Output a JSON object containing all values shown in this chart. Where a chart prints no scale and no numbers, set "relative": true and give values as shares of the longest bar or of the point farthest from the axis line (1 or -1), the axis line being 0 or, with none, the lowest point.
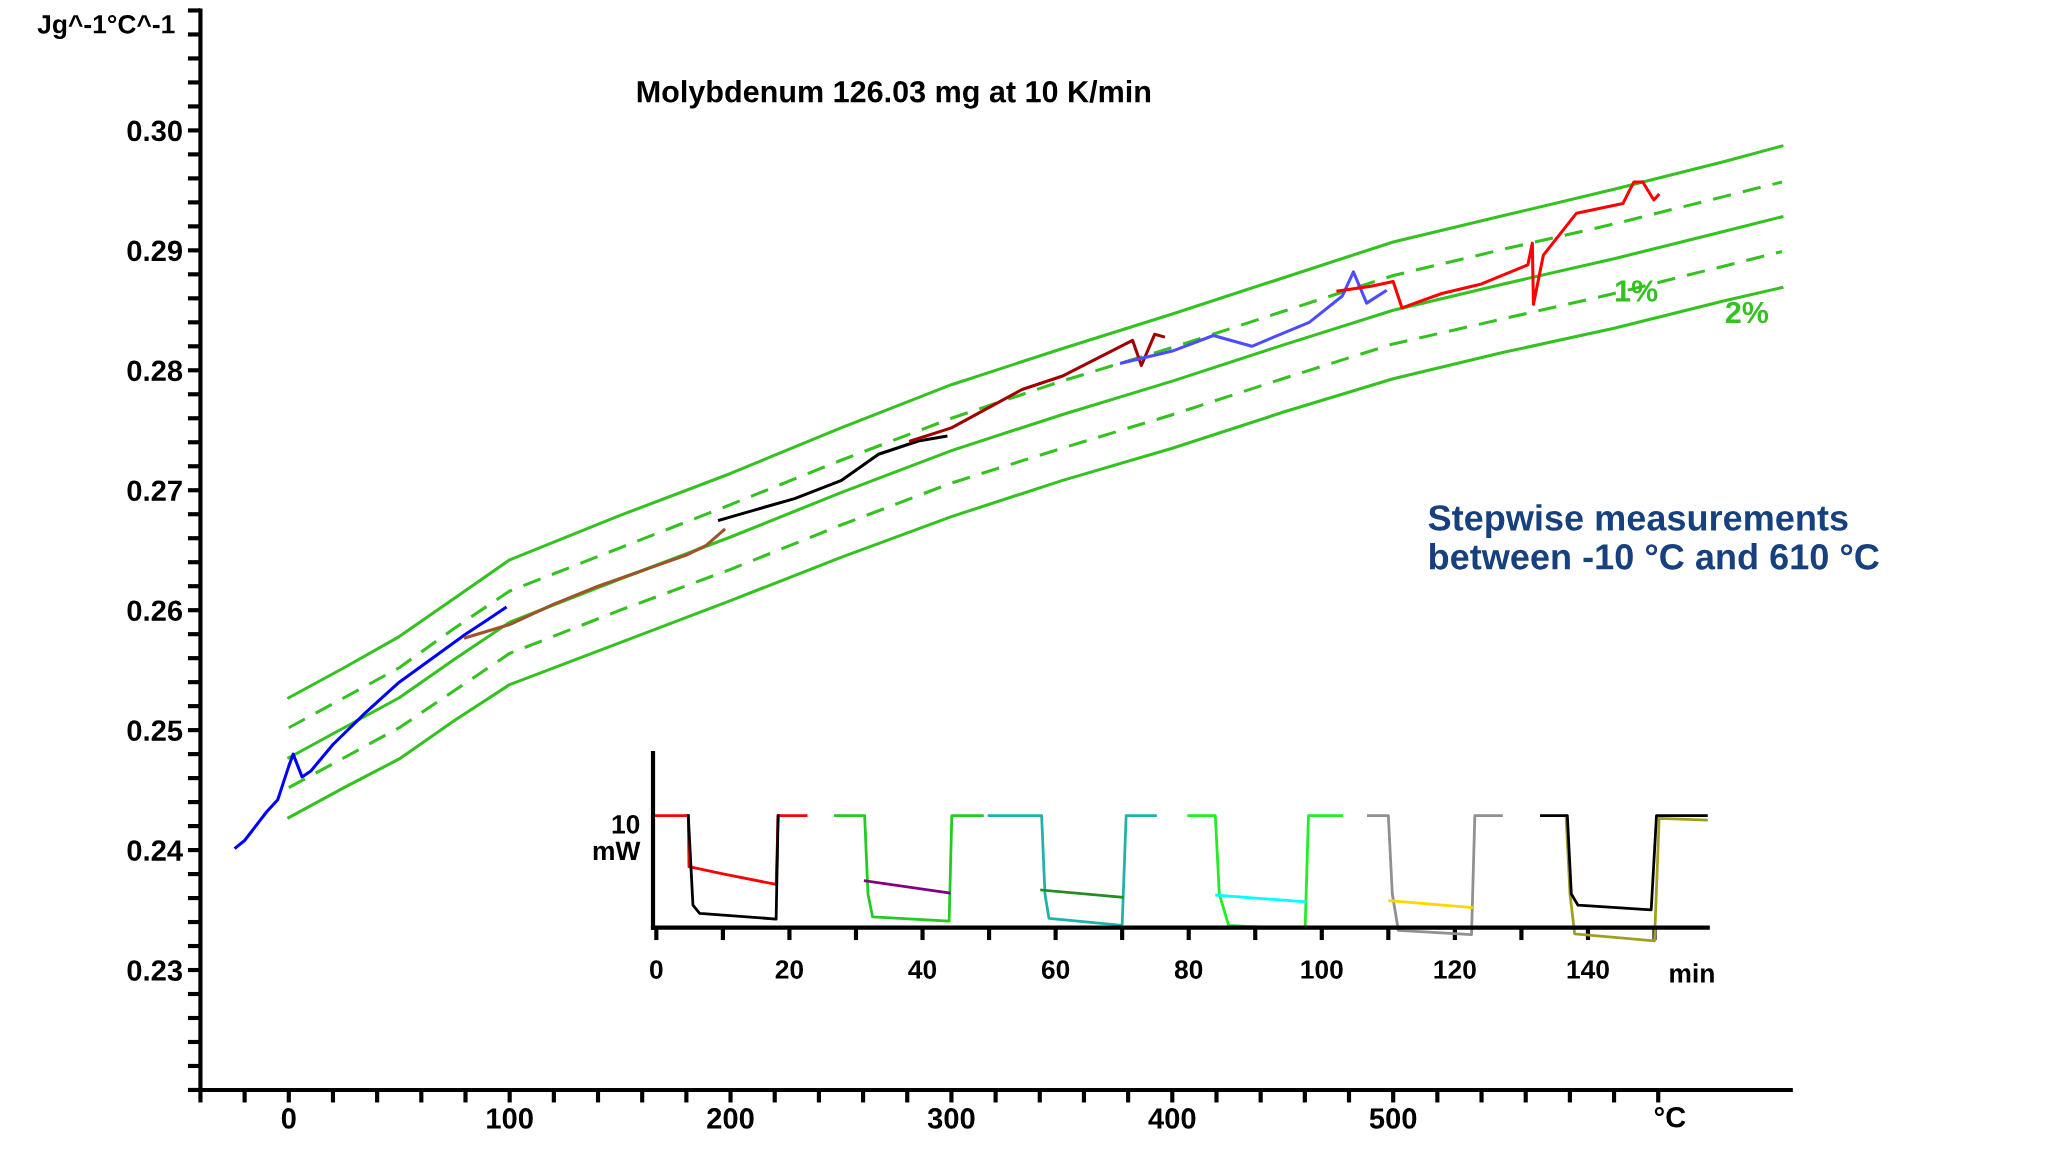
{
  "chart_data": [
    {
      "type": "line",
      "title": "Molybdenum 126.03 mg at 10 K/min",
      "xlabel": "°C",
      "ylabel": "Jg^-1°C^-1",
      "xlim": [
        -40,
        680
      ],
      "ylim": [
        0.22,
        0.31
      ],
      "xticks": [
        {
          "value": -40,
          "label": null
        },
        {
          "value": -20,
          "label": null
        },
        0,
        {
          "value": 20,
          "label": null
        },
        {
          "value": 40,
          "label": null
        },
        {
          "value": 60,
          "label": null
        },
        {
          "value": 80,
          "label": null
        },
        100,
        {
          "value": 120,
          "label": null
        },
        {
          "value": 140,
          "label": null
        },
        {
          "value": 160,
          "label": null
        },
        {
          "value": 180,
          "label": null
        },
        200,
        {
          "value": 220,
          "label": null
        },
        {
          "value": 240,
          "label": null
        },
        {
          "value": 260,
          "label": null
        },
        {
          "value": 280,
          "label": null
        },
        300,
        {
          "value": 320,
          "label": null
        },
        {
          "value": 340,
          "label": null
        },
        {
          "value": 360,
          "label": null
        },
        {
          "value": 380,
          "label": null
        },
        400,
        {
          "value": 420,
          "label": null
        },
        {
          "value": 440,
          "label": null
        },
        {
          "value": 460,
          "label": null
        },
        {
          "value": 480,
          "label": null
        },
        500,
        {
          "value": 520,
          "label": null
        },
        {
          "value": 540,
          "label": null
        },
        {
          "value": 560,
          "label": null
        },
        {
          "value": 580,
          "label": null
        },
        {
          "value": 600,
          "label": null
        },
        {
          "value": 620,
          "label": null
        }
      ],
      "yticks": [
        {
          "value": 0.22,
          "label": null
        },
        {
          "value": 0.222,
          "label": null
        },
        {
          "value": 0.224,
          "label": null
        },
        {
          "value": 0.226,
          "label": null
        },
        {
          "value": 0.228,
          "label": null
        },
        {
          "value": 0.23,
          "label": "0.23"
        },
        {
          "value": 0.232,
          "label": null
        },
        {
          "value": 0.234,
          "label": null
        },
        {
          "value": 0.236,
          "label": null
        },
        {
          "value": 0.238,
          "label": null
        },
        {
          "value": 0.24,
          "label": "0.24"
        },
        {
          "value": 0.242,
          "label": null
        },
        {
          "value": 0.244,
          "label": null
        },
        {
          "value": 0.246,
          "label": null
        },
        {
          "value": 0.248,
          "label": null
        },
        {
          "value": 0.25,
          "label": "0.25"
        },
        {
          "value": 0.252,
          "label": null
        },
        {
          "value": 0.254,
          "label": null
        },
        {
          "value": 0.256,
          "label": null
        },
        {
          "value": 0.258,
          "label": null
        },
        {
          "value": 0.26,
          "label": "0.26"
        },
        {
          "value": 0.262,
          "label": null
        },
        {
          "value": 0.264,
          "label": null
        },
        {
          "value": 0.266,
          "label": null
        },
        {
          "value": 0.268,
          "label": null
        },
        {
          "value": 0.27,
          "label": "0.27"
        },
        {
          "value": 0.272,
          "label": null
        },
        {
          "value": 0.274,
          "label": null
        },
        {
          "value": 0.276,
          "label": null
        },
        {
          "value": 0.278,
          "label": null
        },
        {
          "value": 0.28,
          "label": "0.28"
        },
        {
          "value": 0.282,
          "label": null
        },
        {
          "value": 0.284,
          "label": null
        },
        {
          "value": 0.286,
          "label": null
        },
        {
          "value": 0.288,
          "label": null
        },
        {
          "value": 0.29,
          "label": "0.29"
        },
        {
          "value": 0.292,
          "label": null
        },
        {
          "value": 0.294,
          "label": null
        },
        {
          "value": 0.296,
          "label": null
        },
        {
          "value": 0.298,
          "label": null
        },
        {
          "value": 0.3,
          "label": "0.30"
        },
        {
          "value": 0.302,
          "label": null
        },
        {
          "value": 0.304,
          "label": null
        },
        {
          "value": 0.306,
          "label": null
        },
        {
          "value": 0.308,
          "label": null
        },
        {
          "value": 0.31,
          "label": null
        }
      ],
      "grid": false,
      "marker": "none",
      "series": [
        {
          "color": "#33c21f",
          "line_style": "solid",
          "x": [
            0,
            25,
            50,
            75,
            100,
            150,
            200,
            250,
            300,
            350,
            400,
            450,
            500,
            550,
            600,
            650,
            676
          ],
          "values": [
            0.2527,
            0.2552,
            0.2578,
            0.261,
            0.2642,
            0.2679,
            0.2714,
            0.2752,
            0.2788,
            0.2818,
            0.2847,
            0.2877,
            0.2907,
            0.2929,
            0.2951,
            0.2974,
            0.2987
          ]
        },
        {
          "color": "#33c21f",
          "line_style": "dashed",
          "x": [
            0,
            25,
            50,
            75,
            100,
            150,
            200,
            250,
            300,
            350,
            400,
            450,
            500,
            550,
            600,
            650,
            676
          ],
          "values": [
            0.2502,
            0.2527,
            0.2552,
            0.2585,
            0.2616,
            0.2652,
            0.2688,
            0.2725,
            0.276,
            0.2791,
            0.2819,
            0.2849,
            0.2879,
            0.2901,
            0.2922,
            0.2945,
            0.2957
          ]
        },
        {
          "color": "#33c21f",
          "line_style": "solid",
          "x": [
            0,
            25,
            50,
            75,
            100,
            150,
            200,
            250,
            300,
            350,
            400,
            450,
            500,
            550,
            600,
            650,
            676
          ],
          "values": [
            0.2477,
            0.2502,
            0.2527,
            0.2559,
            0.259,
            0.2626,
            0.2661,
            0.2698,
            0.2733,
            0.2763,
            0.2791,
            0.2821,
            0.285,
            0.2872,
            0.2893,
            0.2916,
            0.2928
          ]
        },
        {
          "color": "#33c21f",
          "line_style": "dashed",
          "x": [
            0,
            25,
            50,
            75,
            100,
            150,
            200,
            250,
            300,
            350,
            400,
            450,
            500,
            550,
            600,
            650,
            676
          ],
          "values": [
            0.2452,
            0.2477,
            0.2502,
            0.2533,
            0.2564,
            0.26,
            0.2634,
            0.2671,
            0.2706,
            0.2735,
            0.2763,
            0.2793,
            0.2822,
            0.2843,
            0.2864,
            0.2887,
            0.2899
          ]
        },
        {
          "color": "#33c21f",
          "line_style": "solid",
          "x": [
            0,
            25,
            50,
            75,
            100,
            150,
            200,
            250,
            300,
            350,
            400,
            450,
            500,
            550,
            600,
            650,
            676
          ],
          "values": [
            0.2427,
            0.2452,
            0.2476,
            0.2508,
            0.2538,
            0.2573,
            0.2608,
            0.2644,
            0.2678,
            0.2708,
            0.2735,
            0.2765,
            0.2793,
            0.2815,
            0.2835,
            0.2858,
            0.2869
          ]
        },
        {
          "color": "#0000ff",
          "line_style": "solid",
          "x": [
            -24,
            -20,
            -15,
            -10,
            -5,
            0,
            2,
            6,
            10,
            20,
            35,
            50,
            65,
            80,
            90,
            98
          ],
          "values": [
            0.2402,
            0.2408,
            0.242,
            0.2432,
            0.2442,
            0.247,
            0.248,
            0.2461,
            0.2466,
            0.2488,
            0.2515,
            0.254,
            0.256,
            0.258,
            0.2592,
            0.2602
          ]
        },
        {
          "color": "#a0522d",
          "line_style": "solid",
          "x": [
            80,
            100,
            120,
            140,
            160,
            180,
            189,
            197
          ],
          "values": [
            0.2577,
            0.2588,
            0.2605,
            0.262,
            0.2633,
            0.2646,
            0.2654,
            0.2667
          ]
        },
        {
          "color": "#000000",
          "line_style": "solid",
          "x": [
            195,
            210,
            229,
            250,
            267,
            285,
            297.5
          ],
          "values": [
            0.2675,
            0.2683,
            0.2693,
            0.2708,
            0.273,
            0.2741,
            0.2745
          ]
        },
        {
          "color": "#a00000",
          "line_style": "solid",
          "x": [
            281.5,
            300,
            332,
            350,
            366,
            382,
            386,
            392,
            396
          ],
          "values": [
            0.2741,
            0.2752,
            0.2784,
            0.2795,
            0.281,
            0.2825,
            0.2804,
            0.283,
            0.2828
          ]
        },
        {
          "color": "#4d4dff",
          "line_style": "solid",
          "x": [
            377,
            400,
            418.6,
            436,
            462,
            477,
            482,
            488,
            496.5
          ],
          "values": [
            0.2806,
            0.2816,
            0.2829,
            0.282,
            0.284,
            0.2862,
            0.2882,
            0.2856,
            0.2866
          ]
        },
        {
          "color": "#ff0000",
          "line_style": "solid",
          "x": [
            475,
            490,
            500,
            504,
            522,
            540,
            561,
            563,
            563.5,
            568,
            583,
            604,
            607,
            609,
            613,
            618,
            620
          ],
          "values": [
            0.2866,
            0.287,
            0.2874,
            0.2852,
            0.2864,
            0.2872,
            0.2888,
            0.2906,
            0.2855,
            0.2896,
            0.2931,
            0.2939,
            0.295,
            0.2957,
            0.2957,
            0.2942,
            0.2946
          ]
        }
      ],
      "annotations": [
        {
          "text": "1%",
          "x": 610,
          "y": 0.2864
        },
        "2%",
        "Stepwise measurements\nbetween -10 °C and 610 °C"
      ]
    },
    {
      "type": "line",
      "relative": true,
      "xlabel": "min",
      "ylabel": "10\nmW",
      "xlim": [
        -0.5,
        158
      ],
      "xticks": [
        0,
        {
          "value": 10,
          "label": null
        },
        20,
        {
          "value": 30,
          "label": null
        },
        40,
        {
          "value": 50,
          "label": null
        },
        60,
        {
          "value": 70,
          "label": null
        },
        80,
        {
          "value": 90,
          "label": null
        },
        100,
        {
          "value": 110,
          "label": null
        },
        120,
        {
          "value": 130,
          "label": null
        },
        140,
        {
          "value": 150,
          "label": null
        }
      ],
      "grid": false,
      "marker": "none",
      "line_style": "solid",
      "series": [
        {
          "color": "#ff0000",
          "x": [
            0,
            4.8,
            4.9,
            10,
            18.0,
            18.3,
            22.5
          ],
          "values": [
            1,
            1,
            0.544,
            0.48,
            0.386,
            1,
            1
          ]
        },
        {
          "color": "#000000",
          "x": [
            4.8,
            5.5,
            6.5,
            18.0,
            18.3
          ],
          "values": [
            1,
            0.2,
            0.127,
            0.076,
            1
          ]
        },
        {
          "color": "#22cc22",
          "x": [
            26.9,
            31.3,
            31.8,
            32.5,
            44.0,
            44.4,
            49
          ],
          "values": [
            1,
            1,
            0.3,
            0.095,
            0.057,
            1,
            1
          ]
        },
        {
          "color": "#800080",
          "x": [
            31.4,
            44.0
          ],
          "values": [
            0.418,
            0.31
          ]
        },
        {
          "color": "#20b2aa",
          "x": [
            50,
            57.9,
            58.4,
            59,
            70,
            70.6,
            75
          ],
          "values": [
            1,
            1,
            0.3,
            0.082,
            0.019,
            1,
            1
          ]
        },
        {
          "color": "#228b22",
          "x": [
            57.9,
            70
          ],
          "values": [
            0.335,
            0.27
          ]
        },
        {
          "color": "#22ee22",
          "x": [
            80,
            84,
            84.6,
            86,
            92,
            97.5,
            98,
            103
          ],
          "values": [
            1,
            1,
            0.3,
            0.02,
            0,
            0,
            1,
            1
          ]
        },
        {
          "color": "#00ffff",
          "x": [
            84.2,
            97.5
          ],
          "values": [
            0.29,
            0.23
          ]
        },
        {
          "color": "#909090",
          "x": [
            107,
            110,
            110.6,
            111.5,
            122.5,
            123,
            127
          ],
          "values": [
            1,
            1,
            0.3,
            -0.025,
            -0.063,
            1,
            1
          ]
        },
        {
          "color": "#ffd700",
          "x": [
            110.2,
            122.5
          ],
          "values": [
            0.24,
            0.18
          ]
        },
        {
          "color": "#a0a020",
          "x": [
            136.7,
            137.3,
            138,
            150,
            150.7,
            158
          ],
          "values": [
            1,
            0.3,
            -0.057,
            -0.12,
            0.975,
            0.96
          ]
        },
        {
          "color": "#000000",
          "x": [
            133,
            136.9,
            137.5,
            138.5,
            149.5,
            150.3,
            158
          ],
          "values": [
            1,
            1,
            0.3,
            0.2,
            0.158,
            1,
            1
          ]
        }
      ]
    }
  ]
}
